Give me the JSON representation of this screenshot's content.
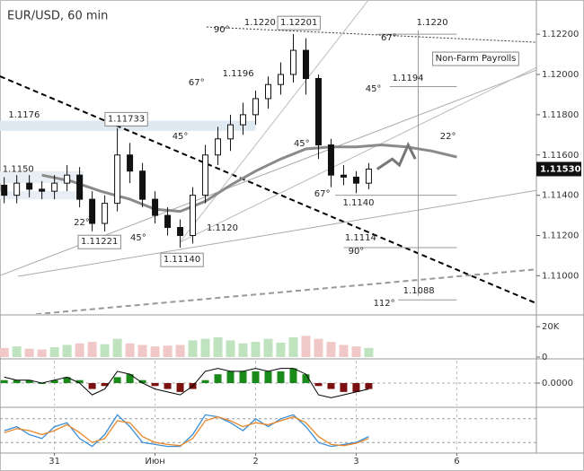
{
  "chart_data": [
    {
      "type": "candlestick",
      "title": "EUR/USD, 60 min",
      "x": [
        1,
        4,
        7,
        10,
        13,
        16,
        19,
        22,
        25,
        28,
        31,
        34,
        37,
        40,
        43,
        46,
        49,
        52,
        55,
        58,
        61,
        64,
        67,
        70,
        73,
        76,
        79,
        82,
        85,
        88
      ],
      "open": [
        1.1145,
        1.114,
        1.1146,
        1.1143,
        1.1142,
        1.1146,
        1.115,
        1.1138,
        1.1126,
        1.1136,
        1.116,
        1.1152,
        1.1138,
        1.113,
        1.1124,
        1.112,
        1.114,
        1.116,
        1.1168,
        1.1175,
        1.118,
        1.1188,
        1.1195,
        1.12,
        1.1212,
        1.1198,
        1.1165,
        1.115,
        1.1149,
        1.1146
      ],
      "high": [
        1.1149,
        1.115,
        1.115,
        1.1147,
        1.115,
        1.1155,
        1.1154,
        1.1142,
        1.114,
        1.11733,
        1.1166,
        1.1156,
        1.1142,
        1.1134,
        1.1128,
        1.1144,
        1.1165,
        1.1174,
        1.118,
        1.1186,
        1.1192,
        1.1199,
        1.1206,
        1.12201,
        1.1218,
        1.12,
        1.1168,
        1.1155,
        1.1152,
        1.1156
      ],
      "low": [
        1.1136,
        1.1136,
        1.1139,
        1.1138,
        1.1138,
        1.1142,
        1.1134,
        1.11221,
        1.1122,
        1.1132,
        1.1146,
        1.1134,
        1.1126,
        1.112,
        1.1114,
        1.1116,
        1.1136,
        1.1155,
        1.1162,
        1.117,
        1.1175,
        1.1183,
        1.119,
        1.1196,
        1.119,
        1.1158,
        1.1144,
        1.1145,
        1.1141,
        1.1143
      ],
      "close": [
        1.114,
        1.1146,
        1.1143,
        1.1142,
        1.1146,
        1.115,
        1.1138,
        1.1126,
        1.1136,
        1.116,
        1.1152,
        1.1138,
        1.113,
        1.1124,
        1.112,
        1.114,
        1.116,
        1.1168,
        1.1175,
        1.118,
        1.1188,
        1.1195,
        1.12,
        1.1212,
        1.1198,
        1.1165,
        1.115,
        1.1149,
        1.1146,
        1.1153
      ],
      "up_color": "#ffffff",
      "down_color": "#111111",
      "xlim": [
        0,
        128
      ],
      "xticks": [
        {
          "value": 13,
          "label": "31"
        },
        {
          "value": 37,
          "label": "Июн"
        },
        {
          "value": 61,
          "label": "2"
        },
        {
          "value": 85,
          "label": "3"
        },
        {
          "value": 109,
          "label": "6"
        }
      ],
      "ylim": [
        1.1081,
        1.1237
      ],
      "yticks": [
        {
          "value": 1.11,
          "label": "1.11000"
        },
        {
          "value": 1.112,
          "label": "1.11200"
        },
        {
          "value": 1.114,
          "label": "1.11400"
        },
        {
          "value": 1.116,
          "label": "1.11600"
        },
        {
          "value": 1.118,
          "label": "1.11800"
        },
        {
          "value": 1.12,
          "label": "1.12000"
        },
        {
          "value": 1.122,
          "label": "1.12200"
        }
      ],
      "last_price": {
        "value": 1.1153,
        "label": "1.11530"
      },
      "moving_average": {
        "color": "#8a8a8a",
        "x": [
          10,
          17,
          24,
          31,
          37,
          43,
          49,
          55,
          61,
          67,
          73,
          79,
          85,
          91,
          97,
          103,
          109
        ],
        "values": [
          1.115,
          1.1147,
          1.1142,
          1.1138,
          1.1133,
          1.1132,
          1.1137,
          1.1145,
          1.1152,
          1.1158,
          1.1163,
          1.1164,
          1.1164,
          1.1165,
          1.1164,
          1.1162,
          1.1159
        ]
      },
      "forecast": {
        "color": "#777777",
        "x": [
          90,
          93.6,
          95.3,
          97.4,
          99.1
        ],
        "values": [
          1.1153,
          1.1158,
          1.1155,
          1.1165,
          1.1158
        ]
      },
      "zones": [
        {
          "x": [
            0,
            61
          ],
          "y": [
            1.1172,
            1.1177
          ],
          "color": "#dfe9f1"
        },
        {
          "x": [
            0,
            20
          ],
          "y": [
            1.1146,
            1.1152
          ],
          "color": "#e8eef3"
        },
        {
          "x": [
            0,
            20
          ],
          "y": [
            1.1138,
            1.1142
          ],
          "color": "#e8eef3"
        }
      ],
      "trendlines": [
        {
          "x": [
            0,
            128
          ],
          "y": [
            1.11991,
            1.10863
          ],
          "color": "#000000",
          "style": "dashed",
          "weight": "thick"
        },
        {
          "x": [
            8.6,
            128
          ],
          "y": [
            1.10809,
            1.11032
          ],
          "color": "#999999",
          "style": "dashed",
          "weight": "thick"
        },
        {
          "x": [
            0,
            128
          ],
          "y": [
            1.11001,
            1.12022
          ],
          "color": "#aaaaaa",
          "style": "solid",
          "weight": "thin"
        },
        {
          "x": [
            4.3,
            128
          ],
          "y": [
            1.10997,
            1.11424
          ],
          "color": "#aaaaaa",
          "style": "solid",
          "weight": "thin"
        },
        {
          "x": [
            49.3,
            128
          ],
          "y": [
            1.12236,
            1.1216
          ],
          "color": "#333333",
          "style": "dotted",
          "weight": "thin"
        },
        {
          "x": [
            42.9,
            87.9
          ],
          "y": [
            1.11166,
            1.12369
          ],
          "color": "#bbbbbb",
          "style": "solid",
          "weight": "thin"
        },
        {
          "x": [
            42.9,
            128
          ],
          "y": [
            1.11166,
            1.12035
          ],
          "color": "#bbbbbb",
          "style": "solid",
          "weight": "thin"
        },
        {
          "x": [
            99.8,
            99.8
          ],
          "y": [
            1.1222,
            1.109
          ],
          "color": "#999999",
          "style": "solid",
          "weight": "thin"
        },
        {
          "x": [
            90,
            109
          ],
          "y": [
            1.122,
            1.122
          ],
          "color": "#999999",
          "style": "solid",
          "weight": "thin"
        },
        {
          "x": [
            93,
            109
          ],
          "y": [
            1.1194,
            1.1194
          ],
          "color": "#999999",
          "style": "solid",
          "weight": "thin"
        },
        {
          "x": [
            80,
            109
          ],
          "y": [
            1.114,
            1.114
          ],
          "color": "#999999",
          "style": "solid",
          "weight": "thin"
        },
        {
          "x": [
            82,
            109
          ],
          "y": [
            1.1114,
            1.1114
          ],
          "color": "#999999",
          "style": "solid",
          "weight": "thin"
        },
        {
          "x": [
            95,
            109
          ],
          "y": [
            1.1088,
            1.1088
          ],
          "color": "#999999",
          "style": "solid",
          "weight": "thin"
        }
      ],
      "annotations": [
        {
          "text": "1.1176",
          "x": 2,
          "y": 1.118
        },
        {
          "text": "1.1150",
          "x": 0.6,
          "y": 1.1153
        },
        {
          "text": "1.11733",
          "x": 25.7,
          "y": 1.1178,
          "boxed": true
        },
        {
          "text": "22°",
          "x": 17.6,
          "y": 1.11264
        },
        {
          "text": "1.11221",
          "x": 19.3,
          "y": 1.1117,
          "boxed": true
        },
        {
          "text": "45°",
          "x": 31.1,
          "y": 1.11188
        },
        {
          "text": "1.11140",
          "x": 39,
          "y": 1.11081,
          "boxed": true
        },
        {
          "text": "1.1120",
          "x": 49.3,
          "y": 1.11237
        },
        {
          "text": "45°",
          "x": 41.1,
          "y": 1.11692
        },
        {
          "text": "67°",
          "x": 45,
          "y": 1.11959
        },
        {
          "text": "1.1196",
          "x": 53.1,
          "y": 1.12004
        },
        {
          "text": "90°",
          "x": 51,
          "y": 1.12222
        },
        {
          "text": "1.1220",
          "x": 58.3,
          "y": 1.12258
        },
        {
          "text": "1.12201",
          "x": 66.9,
          "y": 1.12258,
          "boxed": true
        },
        {
          "text": "45°",
          "x": 70.1,
          "y": 1.11656
        },
        {
          "text": "67°",
          "x": 75,
          "y": 1.11407
        },
        {
          "text": "1.1140",
          "x": 81.8,
          "y": 1.11362
        },
        {
          "text": "1.1114",
          "x": 82.3,
          "y": 1.11188
        },
        {
          "text": "90°",
          "x": 83.1,
          "y": 1.11121
        },
        {
          "text": "112°",
          "x": 89.1,
          "y": 1.10863
        },
        {
          "text": "1.1088",
          "x": 96.2,
          "y": 1.10925
        },
        {
          "text": "67°",
          "x": 90.9,
          "y": 1.12182
        },
        {
          "text": "1.1220",
          "x": 99.4,
          "y": 1.12258
        },
        {
          "text": "45°",
          "x": 87.2,
          "y": 1.11928
        },
        {
          "text": "1.1194",
          "x": 93.6,
          "y": 1.11982
        },
        {
          "text": "22°",
          "x": 105,
          "y": 1.11692
        },
        {
          "text": "Non-Farm Payrolls",
          "x": 103.9,
          "y": 1.1208,
          "boxed": true
        }
      ]
    },
    {
      "type": "bar",
      "up_color": "#bfe3bf",
      "down_color": "#f0c8c8",
      "values": [
        6000,
        7000,
        5500,
        5000,
        6500,
        8000,
        9000,
        10000,
        8500,
        12000,
        9000,
        8000,
        7000,
        7500,
        8000,
        11000,
        12000,
        13000,
        11000,
        9000,
        10000,
        12000,
        9500,
        13000,
        14000,
        12000,
        10000,
        8000,
        7000,
        6000
      ],
      "ylim": [
        0,
        26000
      ],
      "yticks": [
        0,
        {
          "value": 20000,
          "label": "20K"
        }
      ]
    },
    {
      "type": "oscillator",
      "ylim": [
        -0.0007,
        0.0007
      ],
      "yticks": [
        {
          "value": 0,
          "label": "0.0000"
        }
      ],
      "up_color": "#1a8a1a",
      "down_color": "#7a1010",
      "line_color": "#000000",
      "values": [
        0.0001,
        0.0001,
        0.0001,
        0,
        0.0001,
        0.0002,
        0.0001,
        -0.0002,
        -0.0001,
        0.0002,
        0.0003,
        0.0001,
        -0.0001,
        -0.0002,
        -0.0003,
        -0.0002,
        0.0001,
        0.0003,
        0.0004,
        0.0004,
        0.0004,
        0.0004,
        0.0004,
        0.0005,
        0.0003,
        -0.0001,
        -0.0002,
        -0.0003,
        -0.0003,
        -0.0002
      ],
      "line_values": [
        0.0002,
        0.0001,
        0.0001,
        0,
        0.0001,
        0.0002,
        0,
        -0.0004,
        -0.0002,
        0.0004,
        0.0003,
        0,
        -0.0002,
        -0.0003,
        -0.0004,
        -0.0001,
        0.0004,
        0.0005,
        0.0004,
        0.0004,
        0.0005,
        0.0004,
        0.0005,
        0.0005,
        0.0003,
        -0.0004,
        -0.0005,
        -0.0004,
        -0.0003,
        -0.0002
      ]
    },
    {
      "type": "line",
      "ylim": [
        0,
        100
      ],
      "levels": [
        20,
        80
      ],
      "series": [
        {
          "color": "#3a8fd8",
          "values": [
            50,
            60,
            40,
            30,
            60,
            70,
            30,
            10,
            40,
            90,
            60,
            20,
            15,
            10,
            10,
            40,
            90,
            85,
            70,
            50,
            80,
            60,
            80,
            90,
            60,
            20,
            10,
            15,
            20,
            35
          ]
        },
        {
          "color": "#e8872a",
          "values": [
            45,
            55,
            50,
            40,
            50,
            65,
            45,
            20,
            30,
            75,
            70,
            35,
            20,
            15,
            12,
            30,
            75,
            85,
            75,
            60,
            70,
            65,
            75,
            85,
            70,
            35,
            15,
            12,
            18,
            30
          ]
        }
      ]
    }
  ]
}
